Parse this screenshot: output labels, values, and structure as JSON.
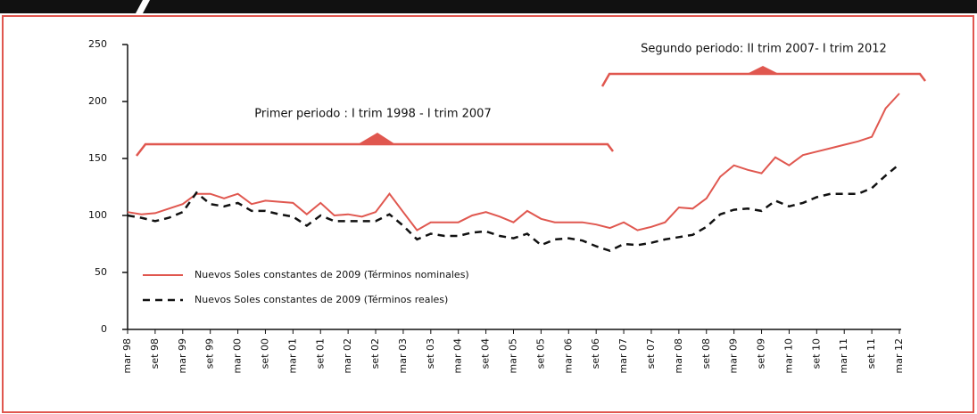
{
  "chart_data": {
    "type": "line",
    "annotations": [
      "Primer periodo : I trim 1998 - I trim 2007",
      "Segundo periodo: II trim 2007- I trim 2012"
    ],
    "categories": [
      "mar 98",
      null,
      "set 98",
      null,
      "mar 99",
      null,
      "set 99",
      null,
      "mar 00",
      null,
      "set 00",
      null,
      "mar 01",
      null,
      "set 01",
      null,
      "mar 02",
      null,
      "set 02",
      null,
      "mar 03",
      null,
      "set 03",
      null,
      "mar 04",
      null,
      "set 04",
      null,
      "mar 05",
      null,
      "set 05",
      null,
      "mar 06",
      null,
      "set 06",
      null,
      "mar 07",
      null,
      "set 07",
      null,
      "mar 08",
      null,
      "set 08",
      null,
      "mar 09",
      null,
      "set 09",
      null,
      "mar 10",
      null,
      "set 10",
      null,
      "mar 11",
      null,
      "set 11",
      null,
      "mar 12"
    ],
    "series": [
      {
        "name": "Nuevos Soles constantes de 2009 (Términos nominales)",
        "color": "#e0574f",
        "line_style": "solid",
        "values": [
          103,
          101,
          102,
          106,
          110,
          119,
          119,
          115,
          119,
          110,
          113,
          112,
          111,
          101,
          111,
          100,
          101,
          99,
          103,
          119,
          103,
          87,
          94,
          94,
          94,
          100,
          103,
          99,
          94,
          104,
          97,
          94,
          94,
          94,
          92,
          89,
          94,
          87,
          90,
          94,
          107,
          106,
          115,
          134,
          144,
          140,
          137,
          151,
          144,
          153,
          156,
          159,
          162,
          165,
          169,
          194,
          207
        ]
      },
      {
        "name": "Nuevos Soles constantes de 2009 (Términos reales)",
        "color": "#111111",
        "line_style": "dashed",
        "values": [
          100,
          98,
          95,
          98,
          103,
          120,
          110,
          108,
          111,
          104,
          104,
          101,
          99,
          91,
          100,
          95,
          95,
          95,
          95,
          101,
          91,
          79,
          84,
          82,
          82,
          85,
          86,
          82,
          80,
          84,
          74,
          79,
          80,
          78,
          73,
          69,
          75,
          74,
          76,
          79,
          81,
          83,
          90,
          101,
          105,
          106,
          104,
          113,
          108,
          111,
          116,
          119,
          119,
          119,
          124,
          135,
          145
        ]
      }
    ],
    "ylim": [
      0,
      250
    ],
    "yticks": [
      0,
      50,
      100,
      150,
      200,
      250
    ]
  }
}
